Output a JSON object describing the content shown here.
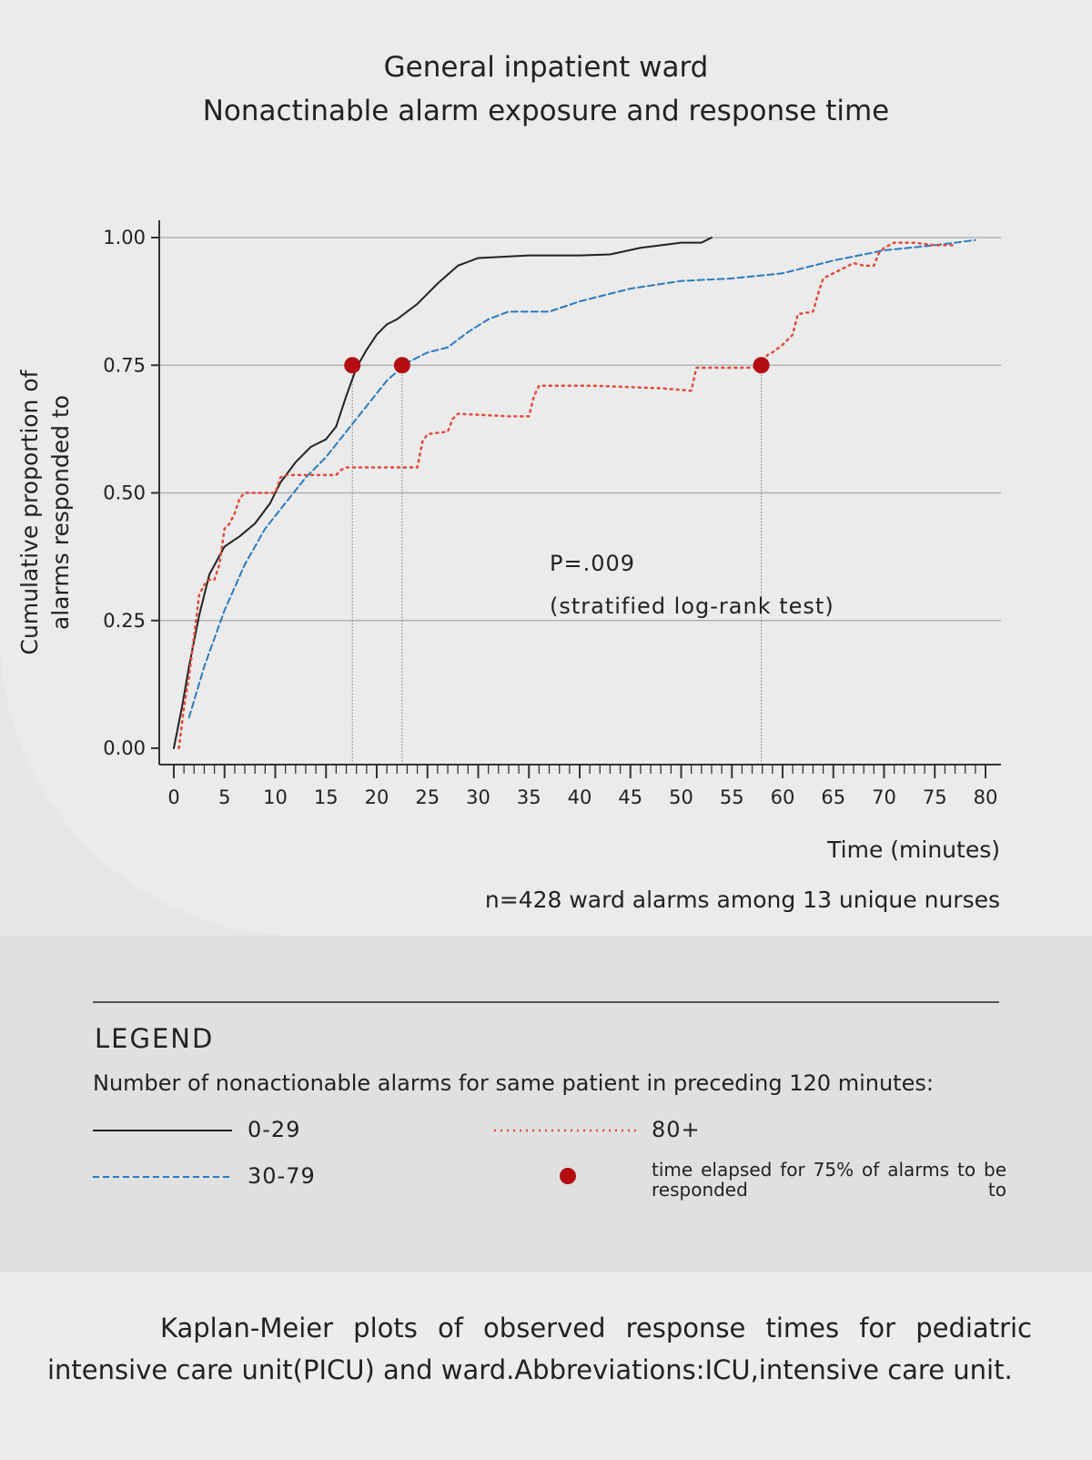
{
  "chart_data": {
    "type": "line",
    "title": "General inpatient ward",
    "subtitle": "Nonactinable alarm exposure and response time",
    "xlabel": "Time (minutes)",
    "ylabel_line1": "Cumulative proportion of",
    "ylabel_line2": "alarms responded to",
    "xlim": [
      0,
      80
    ],
    "ylim": [
      0,
      1
    ],
    "xticks": [
      "0",
      "5",
      "10",
      "15",
      "20",
      "25",
      "30",
      "35",
      "40",
      "45",
      "50",
      "55",
      "60",
      "65",
      "70",
      "75",
      "80"
    ],
    "yticks": [
      "0.00",
      "0.25",
      "0.50",
      "0.75",
      "1.00"
    ],
    "grid": "horizontal",
    "series": [
      {
        "name": "0-29",
        "color": "#222222",
        "style": "solid",
        "points": [
          [
            0,
            0
          ],
          [
            0.8,
            0.08
          ],
          [
            1.5,
            0.16
          ],
          [
            2.5,
            0.26
          ],
          [
            3.5,
            0.34
          ],
          [
            5,
            0.395
          ],
          [
            6.5,
            0.415
          ],
          [
            8,
            0.44
          ],
          [
            9.5,
            0.48
          ],
          [
            10.5,
            0.52
          ],
          [
            12,
            0.56
          ],
          [
            13.5,
            0.59
          ],
          [
            15,
            0.605
          ],
          [
            16,
            0.63
          ],
          [
            17,
            0.69
          ],
          [
            18,
            0.745
          ],
          [
            19,
            0.78
          ],
          [
            20,
            0.81
          ],
          [
            21,
            0.83
          ],
          [
            22,
            0.84
          ],
          [
            24,
            0.87
          ],
          [
            26,
            0.91
          ],
          [
            28,
            0.945
          ],
          [
            30,
            0.96
          ],
          [
            35,
            0.965
          ],
          [
            40,
            0.965
          ],
          [
            43,
            0.967
          ],
          [
            46,
            0.98
          ],
          [
            50,
            0.99
          ],
          [
            52,
            0.99
          ],
          [
            53,
            1.0
          ]
        ]
      },
      {
        "name": "30-79",
        "color": "#2a7ac0",
        "style": "dashed",
        "points": [
          [
            1.5,
            0.06
          ],
          [
            3,
            0.16
          ],
          [
            5,
            0.27
          ],
          [
            7,
            0.36
          ],
          [
            9,
            0.43
          ],
          [
            11,
            0.48
          ],
          [
            13,
            0.53
          ],
          [
            15,
            0.57
          ],
          [
            17,
            0.62
          ],
          [
            19,
            0.67
          ],
          [
            21,
            0.72
          ],
          [
            23,
            0.755
          ],
          [
            25,
            0.775
          ],
          [
            27,
            0.785
          ],
          [
            29,
            0.815
          ],
          [
            31,
            0.84
          ],
          [
            33,
            0.855
          ],
          [
            35,
            0.855
          ],
          [
            37,
            0.855
          ],
          [
            40,
            0.875
          ],
          [
            45,
            0.9
          ],
          [
            50,
            0.915
          ],
          [
            55,
            0.92
          ],
          [
            60,
            0.93
          ],
          [
            65,
            0.955
          ],
          [
            70,
            0.975
          ],
          [
            75,
            0.985
          ],
          [
            79,
            0.995
          ]
        ]
      },
      {
        "name": "80+",
        "color": "#e24a3a",
        "style": "dotted",
        "points": [
          [
            0.5,
            0
          ],
          [
            1,
            0.08
          ],
          [
            1.5,
            0.14
          ],
          [
            2,
            0.22
          ],
          [
            2.5,
            0.3
          ],
          [
            3,
            0.32
          ],
          [
            3.5,
            0.33
          ],
          [
            4,
            0.33
          ],
          [
            4.5,
            0.36
          ],
          [
            5,
            0.43
          ],
          [
            5.5,
            0.44
          ],
          [
            6,
            0.46
          ],
          [
            6.5,
            0.49
          ],
          [
            7,
            0.5
          ],
          [
            10,
            0.5
          ],
          [
            10.5,
            0.53
          ],
          [
            11,
            0.535
          ],
          [
            14,
            0.535
          ],
          [
            16,
            0.535
          ],
          [
            16.5,
            0.545
          ],
          [
            17,
            0.55
          ],
          [
            24,
            0.55
          ],
          [
            24.5,
            0.6
          ],
          [
            25,
            0.615
          ],
          [
            27,
            0.62
          ],
          [
            27.5,
            0.645
          ],
          [
            28,
            0.655
          ],
          [
            33,
            0.65
          ],
          [
            35,
            0.65
          ],
          [
            35.5,
            0.69
          ],
          [
            36,
            0.71
          ],
          [
            41,
            0.71
          ],
          [
            48,
            0.705
          ],
          [
            51,
            0.7
          ],
          [
            51.5,
            0.745
          ],
          [
            57,
            0.745
          ],
          [
            58,
            0.75
          ],
          [
            58.5,
            0.77
          ],
          [
            59,
            0.775
          ],
          [
            60,
            0.79
          ],
          [
            61,
            0.81
          ],
          [
            61.5,
            0.85
          ],
          [
            63,
            0.855
          ],
          [
            63.5,
            0.89
          ],
          [
            64,
            0.92
          ],
          [
            65,
            0.93
          ],
          [
            66,
            0.94
          ],
          [
            67,
            0.95
          ],
          [
            68,
            0.945
          ],
          [
            69,
            0.945
          ],
          [
            69.5,
            0.97
          ],
          [
            70,
            0.98
          ],
          [
            71,
            0.99
          ],
          [
            73,
            0.99
          ],
          [
            75,
            0.985
          ],
          [
            77,
            0.985
          ]
        ]
      }
    ],
    "markers": [
      {
        "x": 17.6,
        "y": 0.75,
        "color": "#b30d14"
      },
      {
        "x": 22.5,
        "y": 0.75,
        "color": "#b30d14"
      },
      {
        "x": 57.9,
        "y": 0.75,
        "color": "#b30d14"
      }
    ],
    "annotation_line1": "P=.009",
    "annotation_line2": "(stratified log-rank test)",
    "note": "n=428 ward alarms among 13 unique nurses"
  },
  "legend": {
    "heading": "LEGEND",
    "subheading": "Number of nonactionable alarms for same patient in preceding 120 minutes:",
    "items": [
      {
        "label": "0-29",
        "color": "#222222",
        "style": "solid"
      },
      {
        "label": "30-79",
        "color": "#2a7ac0",
        "style": "dashed"
      },
      {
        "label": "80+",
        "color": "#e24a3a",
        "style": "dotted"
      },
      {
        "label": "time elapsed for 75% of alarms to be  responded to",
        "color": "#b30d14",
        "style": "marker"
      }
    ]
  },
  "caption": "Kaplan-Meier plots of observed response times for pediatric intensive care unit(PICU) and ward.Abbreviations:ICU,intensive care unit."
}
